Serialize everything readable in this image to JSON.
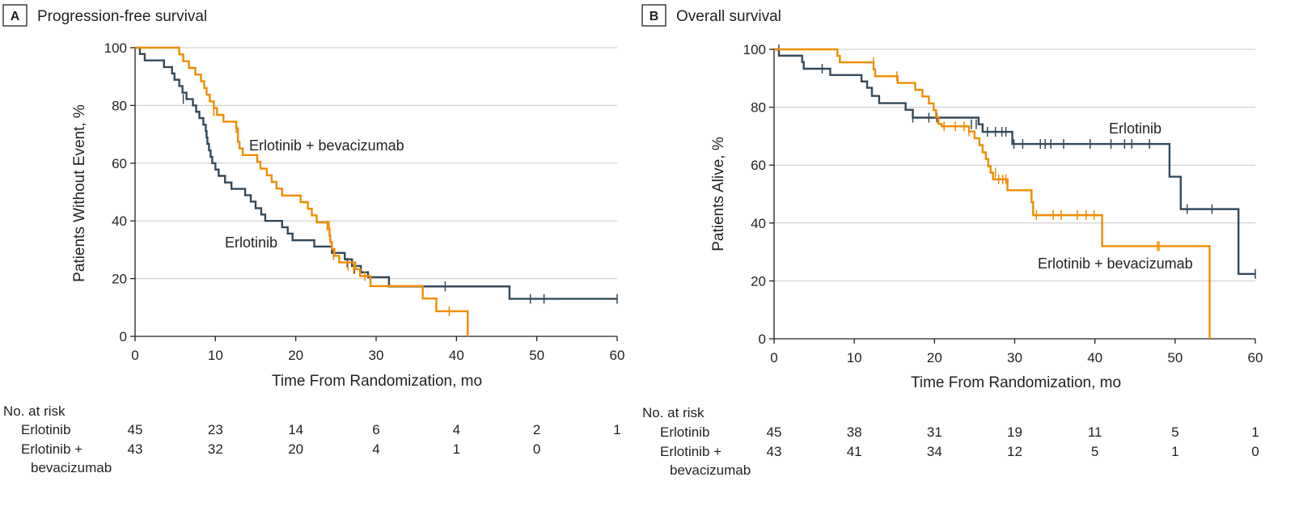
{
  "colors": {
    "erlotinib": "#34495a",
    "combo": "#f08c00",
    "grid": "#c8c8c8",
    "axis": "#231f20"
  },
  "chart_data": [
    {
      "type": "line",
      "panel_letter": "A",
      "title": "Progression-free survival",
      "xlabel": "Time From Randomization, mo",
      "ylabel": "Patients Without Event, %",
      "xlim": [
        0,
        60
      ],
      "ylim": [
        0,
        100
      ],
      "x_ticks": [
        0,
        10,
        20,
        30,
        40,
        50,
        60
      ],
      "y_ticks": [
        0,
        20,
        40,
        60,
        80,
        100
      ],
      "grid": "horizontal",
      "annotations": [
        "Erlotinib + bevacizumab",
        "Erlotinib"
      ],
      "series": [
        {
          "name": "Erlotinib",
          "color": "#34495a",
          "steps": [
            [
              0,
              100
            ],
            [
              0.6,
              97.8
            ],
            [
              1.2,
              95.6
            ],
            [
              3.6,
              93.3
            ],
            [
              4.6,
              91.1
            ],
            [
              4.9,
              88.9
            ],
            [
              5.5,
              86.7
            ],
            [
              5.9,
              84.4
            ],
            [
              6.4,
              82.2
            ],
            [
              7.2,
              80
            ],
            [
              7.6,
              77.8
            ],
            [
              8.0,
              75.6
            ],
            [
              8.5,
              73.3
            ],
            [
              8.8,
              71.1
            ],
            [
              8.9,
              68.9
            ],
            [
              9.0,
              66.7
            ],
            [
              9.2,
              64.4
            ],
            [
              9.4,
              62.2
            ],
            [
              9.6,
              60
            ],
            [
              10.0,
              57.8
            ],
            [
              10.4,
              55.6
            ],
            [
              11.2,
              53.3
            ],
            [
              12.0,
              51.1
            ],
            [
              13.7,
              48.9
            ],
            [
              14.4,
              46.7
            ],
            [
              15.0,
              44.4
            ],
            [
              15.7,
              42.2
            ],
            [
              16.2,
              40
            ],
            [
              18.3,
              37.8
            ],
            [
              19.0,
              35.6
            ],
            [
              19.6,
              33.3
            ],
            [
              22.3,
              31.1
            ],
            [
              24.5,
              28.9
            ],
            [
              26.1,
              26.7
            ],
            [
              27.0,
              24.4
            ],
            [
              28.1,
              22.2
            ],
            [
              29.0,
              20.5
            ],
            [
              31.6,
              17.3
            ],
            [
              46.6,
              13.0
            ],
            [
              60,
              13.0
            ]
          ],
          "censored": [
            [
              6.0,
              82.2
            ],
            [
              24.7,
              28.9
            ],
            [
              26.4,
              25.5
            ],
            [
              27.3,
              23.3
            ],
            [
              38.6,
              17.3
            ],
            [
              49.2,
              13.0
            ],
            [
              50.9,
              13.0
            ],
            [
              60.0,
              13.0
            ]
          ]
        },
        {
          "name": "Erlotinib + bevacizumab",
          "color": "#f08c00",
          "steps": [
            [
              0,
              100
            ],
            [
              5.5,
              97.7
            ],
            [
              6.0,
              95.3
            ],
            [
              6.7,
              93
            ],
            [
              7.5,
              90.7
            ],
            [
              8.2,
              88.4
            ],
            [
              8.6,
              86
            ],
            [
              8.9,
              83.7
            ],
            [
              9.3,
              81.4
            ],
            [
              9.8,
              79.1
            ],
            [
              10.2,
              76.7
            ],
            [
              11.0,
              74.4
            ],
            [
              12.6,
              72.1
            ],
            [
              12.8,
              67.4
            ],
            [
              13.0,
              65.1
            ],
            [
              13.4,
              62.8
            ],
            [
              15.2,
              60.5
            ],
            [
              15.6,
              58.1
            ],
            [
              16.4,
              55.8
            ],
            [
              17.0,
              53.5
            ],
            [
              17.6,
              51.2
            ],
            [
              18.3,
              48.8
            ],
            [
              20.6,
              46.5
            ],
            [
              21.5,
              44.2
            ],
            [
              22.0,
              41.9
            ],
            [
              22.6,
              39.5
            ],
            [
              24.1,
              37.2
            ],
            [
              24.2,
              34.9
            ],
            [
              24.3,
              32.6
            ],
            [
              24.5,
              30.2
            ],
            [
              24.8,
              27.9
            ],
            [
              25.4,
              25.6
            ],
            [
              27.4,
              23.3
            ],
            [
              28.0,
              20.9
            ],
            [
              29.3,
              17.4
            ],
            [
              35.8,
              13.1
            ],
            [
              37.5,
              8.7
            ],
            [
              41.4,
              0
            ]
          ],
          "censored": [
            [
              9.8,
              77.9
            ],
            [
              12.6,
              72.1
            ],
            [
              23.9,
              38.4
            ],
            [
              24.7,
              28.1
            ],
            [
              26.5,
              24.5
            ],
            [
              27.2,
              23.3
            ],
            [
              28.6,
              20.9
            ],
            [
              39.1,
              8.7
            ]
          ]
        }
      ],
      "at_risk": {
        "header": "No. at risk",
        "rows": [
          {
            "label": "Erlotinib",
            "label_lines": [
              "Erlotinib"
            ],
            "values": [
              "45",
              "23",
              "14",
              "6",
              "4",
              "2",
              "1"
            ]
          },
          {
            "label": "Erlotinib + bevacizumab",
            "label_lines": [
              "Erlotinib +",
              "bevacizumab"
            ],
            "values": [
              "43",
              "32",
              "20",
              "4",
              "1",
              "0"
            ]
          }
        ]
      }
    },
    {
      "type": "line",
      "panel_letter": "B",
      "title": "Overall survival",
      "xlabel": "Time From Randomization, mo",
      "ylabel": "Patients Alive, %",
      "xlim": [
        0,
        60
      ],
      "ylim": [
        0,
        100
      ],
      "x_ticks": [
        0,
        10,
        20,
        30,
        40,
        50,
        60
      ],
      "y_ticks": [
        0,
        20,
        40,
        60,
        80,
        100
      ],
      "grid": "horizontal",
      "annotations": [
        "Erlotinib",
        "Erlotinib + bevacizumab"
      ],
      "series": [
        {
          "name": "Erlotinib",
          "color": "#34495a",
          "steps": [
            [
              0,
              100
            ],
            [
              0.6,
              97.8
            ],
            [
              3.5,
              95.6
            ],
            [
              3.7,
              93.3
            ],
            [
              7.0,
              91.1
            ],
            [
              10.9,
              88.9
            ],
            [
              11.6,
              86.7
            ],
            [
              12.2,
              83.9
            ],
            [
              13.1,
              81.4
            ],
            [
              16.4,
              79.1
            ],
            [
              17.3,
              76.4
            ],
            [
              25.5,
              74.1
            ],
            [
              26.0,
              71.5
            ],
            [
              29.7,
              67.3
            ],
            [
              49.3,
              56.0
            ],
            [
              50.7,
              44.8
            ],
            [
              57.9,
              22.4
            ],
            [
              60,
              22.4
            ]
          ],
          "censored": [
            [
              0.6,
              100
            ],
            [
              6.0,
              93.3
            ],
            [
              17.3,
              76.4
            ],
            [
              19.3,
              76.4
            ],
            [
              20.3,
              76.4
            ],
            [
              24.6,
              74.1
            ],
            [
              25.2,
              74.1
            ],
            [
              26.6,
              71.5
            ],
            [
              27.6,
              71.5
            ],
            [
              28.4,
              71.5
            ],
            [
              28.9,
              71.5
            ],
            [
              29.9,
              67.3
            ],
            [
              31.0,
              67.3
            ],
            [
              33.2,
              67.3
            ],
            [
              33.8,
              67.3
            ],
            [
              34.5,
              67.3
            ],
            [
              36.1,
              67.3
            ],
            [
              39.4,
              67.3
            ],
            [
              42.0,
              67.3
            ],
            [
              43.7,
              67.3
            ],
            [
              44.6,
              67.3
            ],
            [
              46.8,
              67.3
            ],
            [
              51.5,
              44.8
            ],
            [
              54.6,
              44.8
            ],
            [
              60.0,
              22.4
            ]
          ]
        },
        {
          "name": "Erlotinib + bevacizumab",
          "color": "#f08c00",
          "steps": [
            [
              0,
              100
            ],
            [
              7.9,
              97.7
            ],
            [
              8.2,
              95.5
            ],
            [
              12.4,
              93.1
            ],
            [
              12.6,
              90.7
            ],
            [
              15.4,
              88.4
            ],
            [
              17.6,
              86
            ],
            [
              18.5,
              83.7
            ],
            [
              19.3,
              81.3
            ],
            [
              19.9,
              79
            ],
            [
              20.2,
              76.6
            ],
            [
              20.5,
              74.2
            ],
            [
              20.9,
              73.4
            ],
            [
              24.3,
              71.6
            ],
            [
              25.0,
              69.3
            ],
            [
              25.6,
              66.9
            ],
            [
              26.0,
              64.4
            ],
            [
              26.4,
              62.1
            ],
            [
              26.7,
              59.6
            ],
            [
              27.0,
              57.4
            ],
            [
              27.3,
              55.1
            ],
            [
              29.1,
              51.3
            ],
            [
              32.1,
              47.2
            ],
            [
              32.3,
              42.7
            ],
            [
              40.9,
              32.0
            ],
            [
              54.3,
              0
            ]
          ],
          "censored": [
            [
              12.4,
              95.5
            ],
            [
              15.3,
              90.7
            ],
            [
              21.2,
              73.4
            ],
            [
              22.6,
              73.4
            ],
            [
              23.7,
              73.4
            ],
            [
              24.3,
              71.6
            ],
            [
              27.6,
              57.4
            ],
            [
              28.0,
              55.1
            ],
            [
              28.5,
              55.1
            ],
            [
              28.9,
              55.1
            ],
            [
              32.7,
              42.7
            ],
            [
              34.8,
              42.7
            ],
            [
              35.8,
              42.7
            ],
            [
              37.8,
              42.7
            ],
            [
              38.9,
              42.7
            ],
            [
              39.9,
              42.7
            ],
            [
              47.8,
              32.0
            ],
            [
              48.0,
              32.0
            ]
          ]
        }
      ],
      "at_risk": {
        "header": "No. at risk",
        "rows": [
          {
            "label": "Erlotinib",
            "label_lines": [
              "Erlotinib"
            ],
            "values": [
              "45",
              "38",
              "31",
              "19",
              "11",
              "5",
              "1"
            ]
          },
          {
            "label": "Erlotinib + bevacizumab",
            "label_lines": [
              "Erlotinib +",
              "bevacizumab"
            ],
            "values": [
              "43",
              "41",
              "34",
              "12",
              "5",
              "1",
              "0"
            ]
          }
        ]
      }
    }
  ]
}
